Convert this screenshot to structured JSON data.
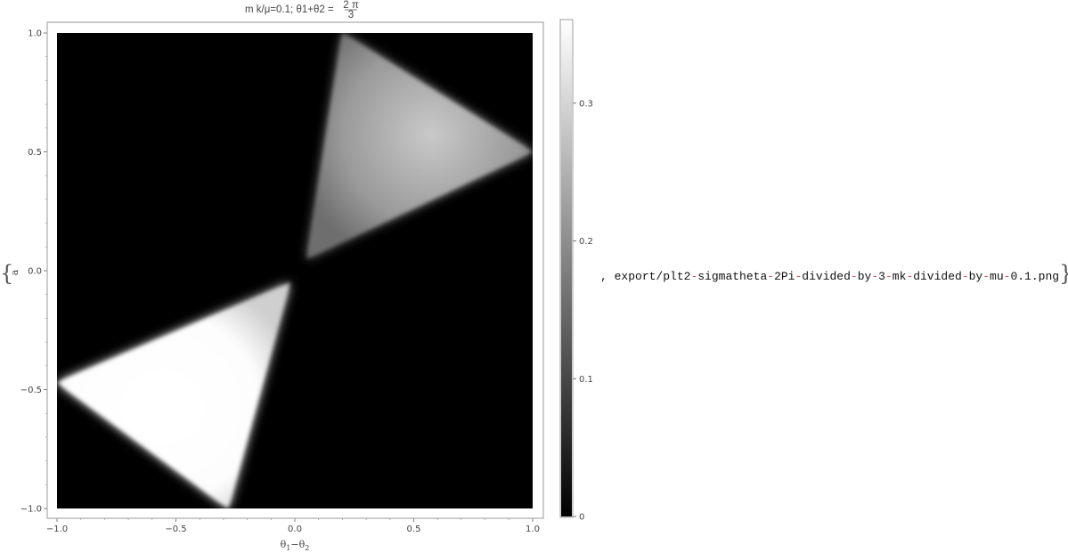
{
  "output_cell": {
    "open_brace": "{",
    "close_brace": "}",
    "separator": ",",
    "export_path_parts": [
      "export/plt2",
      "sigmatheta",
      "2Pi",
      "divided",
      "by",
      "3",
      "mk",
      "divided",
      "by",
      "mu",
      "0.1.png"
    ],
    "path_hyphen": "-",
    "path_hyphen_color": "#d9534f"
  },
  "chart_data": {
    "type": "heatmap",
    "title_parts": {
      "prefix": "m k/μ=0.1; θ1+θ2 = ",
      "frac_num": "2 π",
      "frac_den": "3"
    },
    "xlabel": {
      "base1": "θ",
      "sub1": "1",
      "minus": "−",
      "base2": "θ",
      "sub2": "2"
    },
    "ylabel": "a",
    "xlim": [
      -1.0,
      1.0
    ],
    "ylim": [
      -1.0,
      1.0
    ],
    "x_ticks": [
      "−1.0",
      "−0.5",
      "0.0",
      "0.5",
      "1.0"
    ],
    "x_tick_values": [
      -1.0,
      -0.5,
      0.0,
      0.5,
      1.0
    ],
    "y_ticks": [
      "1.0",
      "0.5",
      "0.0",
      "−0.5",
      "−1.0"
    ],
    "y_tick_values": [
      1.0,
      0.5,
      0.0,
      -0.5,
      -1.0
    ],
    "colorbar": {
      "range": [
        0,
        0.36
      ],
      "ticks": [
        "0.3",
        "0.2",
        "0.1",
        "0"
      ],
      "tick_values": [
        0.3,
        0.2,
        0.1,
        0.0
      ]
    },
    "regions": [
      {
        "name": "upper-triangle",
        "value": 0.22,
        "vertices": [
          [
            0.2,
            1.0
          ],
          [
            1.0,
            0.5
          ],
          [
            0.05,
            0.05
          ]
        ]
      },
      {
        "name": "lower-triangle",
        "value": 0.36,
        "vertices": [
          [
            -0.02,
            -0.05
          ],
          [
            -1.0,
            -0.47
          ],
          [
            -0.28,
            -1.0
          ]
        ]
      }
    ],
    "background_value": 0,
    "grid": false
  }
}
